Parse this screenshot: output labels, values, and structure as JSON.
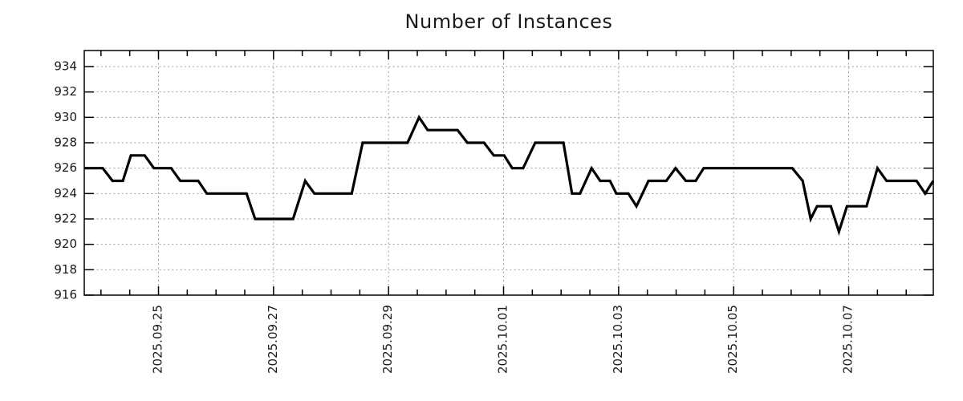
{
  "chart_data": {
    "type": "line",
    "title": "Number of Instances",
    "xlabel": "",
    "ylabel": "",
    "legend": "none",
    "grid": "dashed at major ticks",
    "x_unit": "days relative to 2025-09-25 00:00",
    "x_tick_labels": [
      "2025.09.25",
      "2025.09.27",
      "2025.09.29",
      "2025.10.01",
      "2025.10.03",
      "2025.10.05",
      "2025.10.07"
    ],
    "x_tick_positions_days": [
      0,
      2,
      4,
      6,
      8,
      10,
      12
    ],
    "x_minor_tick_interval_days": 0.5,
    "xlim_days": [
      -1.29,
      13.47
    ],
    "y_ticks": [
      916,
      918,
      920,
      922,
      924,
      926,
      928,
      930,
      932,
      934
    ],
    "ylim": [
      916,
      935.3
    ],
    "line_color": "#000000",
    "grid_color": "#9e9e9e",
    "axis_color": "#000000",
    "text_color": "#1a1a1a",
    "series": [
      {
        "name": "Number of Instances",
        "points": [
          [
            -1.29,
            926
          ],
          [
            -0.97,
            926
          ],
          [
            -0.8,
            925
          ],
          [
            -0.62,
            925
          ],
          [
            -0.48,
            927
          ],
          [
            -0.24,
            927
          ],
          [
            -0.08,
            926
          ],
          [
            0.22,
            926
          ],
          [
            0.38,
            925
          ],
          [
            0.69,
            925
          ],
          [
            0.84,
            924
          ],
          [
            1.53,
            924
          ],
          [
            1.68,
            922
          ],
          [
            2.34,
            922
          ],
          [
            2.55,
            925
          ],
          [
            2.71,
            924
          ],
          [
            3.36,
            924
          ],
          [
            3.55,
            928
          ],
          [
            4.33,
            928
          ],
          [
            4.53,
            930
          ],
          [
            4.68,
            929
          ],
          [
            5.2,
            929
          ],
          [
            5.37,
            928
          ],
          [
            5.66,
            928
          ],
          [
            5.83,
            927
          ],
          [
            6.01,
            927
          ],
          [
            6.15,
            926
          ],
          [
            6.34,
            926
          ],
          [
            6.55,
            928
          ],
          [
            7.04,
            928
          ],
          [
            7.19,
            924
          ],
          [
            7.33,
            924
          ],
          [
            7.53,
            926
          ],
          [
            7.68,
            925
          ],
          [
            7.85,
            925
          ],
          [
            7.96,
            924
          ],
          [
            8.17,
            924
          ],
          [
            8.31,
            923
          ],
          [
            8.52,
            925
          ],
          [
            8.83,
            925
          ],
          [
            8.99,
            926
          ],
          [
            9.17,
            925
          ],
          [
            9.34,
            925
          ],
          [
            9.48,
            926
          ],
          [
            11.02,
            926
          ],
          [
            11.2,
            925
          ],
          [
            11.34,
            922
          ],
          [
            11.45,
            923
          ],
          [
            11.69,
            923
          ],
          [
            11.83,
            921
          ],
          [
            11.97,
            923
          ],
          [
            12.31,
            923
          ],
          [
            12.5,
            926
          ],
          [
            12.66,
            925
          ],
          [
            13.18,
            925
          ],
          [
            13.33,
            924
          ],
          [
            13.47,
            925
          ]
        ]
      }
    ]
  }
}
